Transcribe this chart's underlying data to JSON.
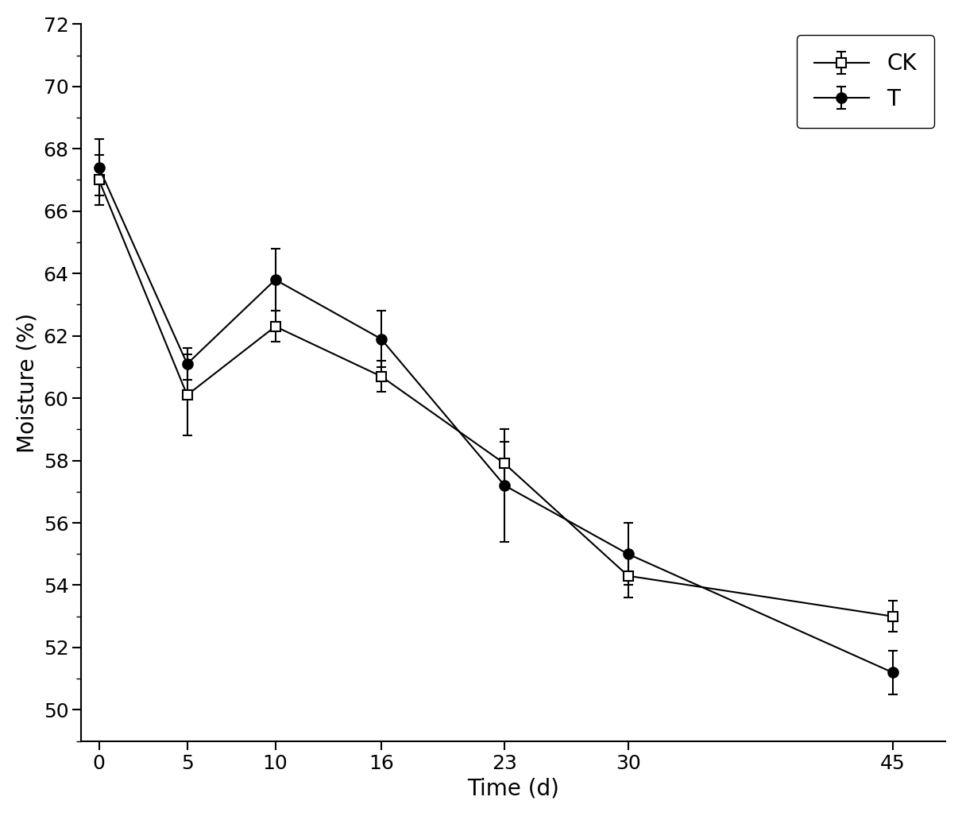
{
  "x": [
    0,
    5,
    10,
    16,
    23,
    30,
    45
  ],
  "ck_y": [
    67.0,
    60.1,
    62.3,
    60.7,
    57.9,
    54.3,
    53.0
  ],
  "ck_err": [
    0.8,
    1.3,
    0.5,
    0.5,
    0.7,
    0.7,
    0.5
  ],
  "t_y": [
    67.4,
    61.1,
    63.8,
    61.9,
    57.2,
    55.0,
    51.2
  ],
  "t_err": [
    0.9,
    0.5,
    1.0,
    0.9,
    1.8,
    1.0,
    0.7
  ],
  "xlabel": "Time (d)",
  "ylabel": "Moisture (%)",
  "ylim": [
    49,
    72
  ],
  "xlim": [
    -1,
    48
  ],
  "yticks_major": [
    50,
    52,
    54,
    56,
    58,
    60,
    62,
    64,
    66,
    68,
    70,
    72
  ],
  "yticks_minor": [
    49,
    51,
    53,
    55,
    57,
    59,
    61,
    63,
    65,
    67,
    69,
    71
  ],
  "xticks": [
    0,
    5,
    10,
    16,
    23,
    30,
    45
  ],
  "legend_labels": [
    "CK",
    "T"
  ],
  "linecolor": "#000000",
  "linewidth": 1.5,
  "markersize": 9,
  "capsize": 4,
  "xlabel_fontsize": 20,
  "ylabel_fontsize": 20,
  "tick_fontsize": 18,
  "legend_fontsize": 20
}
